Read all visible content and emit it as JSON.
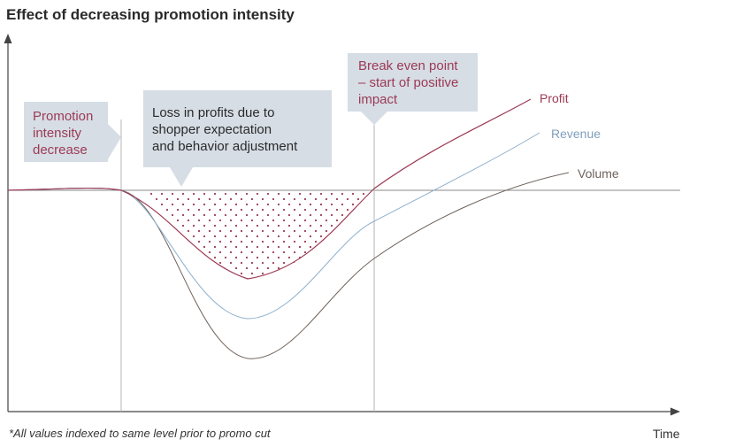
{
  "title": "Effect of decreasing promotion intensity",
  "footnote": "*All values indexed to same level prior to promo cut",
  "colors": {
    "profit": "#9c3a55",
    "revenue": "#8fb0cc",
    "volume": "#6e625a",
    "axis": "#444444",
    "baseline": "#8a8a8a",
    "callout_bg": "#d6dde5",
    "dots": "#9c3a55"
  },
  "callouts": {
    "promo": [
      "Promotion",
      "intensity",
      "decrease"
    ],
    "loss": [
      "Loss in profits due to",
      "shopper expectation",
      "and behavior adjustment"
    ],
    "breakeven": [
      "Break even point",
      "– start of positive",
      "impact"
    ]
  },
  "chart_data": {
    "type": "line",
    "title": "Effect of decreasing promotion intensity",
    "xlabel": "Time",
    "ylabel": "",
    "baseline_index": 0,
    "events": [
      {
        "name": "promo_cut",
        "x": 2
      },
      {
        "name": "break_even",
        "x": 6.5
      }
    ],
    "series": [
      {
        "name": "Profit",
        "x": [
          0,
          1,
          2,
          2.5,
          3,
          3.5,
          4,
          4.5,
          5,
          5.5,
          6,
          6.5,
          7,
          8,
          9,
          10
        ],
        "y": [
          0,
          0.01,
          0,
          -0.15,
          -0.5,
          -0.85,
          -1.0,
          -0.95,
          -0.75,
          -0.5,
          -0.25,
          0,
          0.3,
          0.8,
          1.35,
          2.0
        ]
      },
      {
        "name": "Revenue",
        "x": [
          0,
          1,
          2,
          2.5,
          3,
          3.5,
          4,
          4.5,
          5,
          5.5,
          6,
          6.5,
          7,
          8,
          9,
          10
        ],
        "y": [
          0,
          0.01,
          0,
          -0.2,
          -0.75,
          -1.3,
          -1.5,
          -1.4,
          -1.15,
          -0.85,
          -0.55,
          -0.3,
          0,
          0.5,
          0.95,
          1.35
        ]
      },
      {
        "name": "Volume",
        "x": [
          0,
          1,
          2,
          2.5,
          3,
          3.5,
          4,
          4.5,
          5,
          5.5,
          6,
          6.5,
          7,
          8,
          9,
          10
        ],
        "y": [
          0,
          0.01,
          0,
          -0.25,
          -1.0,
          -1.75,
          -2.0,
          -1.9,
          -1.6,
          -1.3,
          -1.0,
          -0.75,
          -0.5,
          -0.05,
          0.3,
          0.45
        ]
      }
    ]
  }
}
